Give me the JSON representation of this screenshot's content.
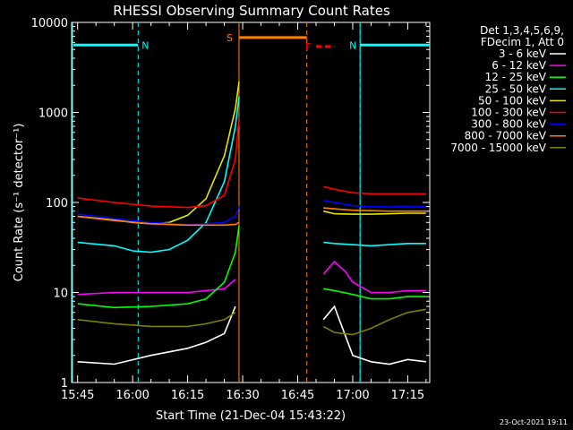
{
  "chart_data": {
    "type": "line",
    "title": "RHESSI Observing Summary Count Rates",
    "xlabel": "Start Time (21-Dec-04 15:43:22)",
    "ylabel": "Count Rate (s⁻¹ detector⁻¹)",
    "yscale": "log",
    "xlim": [
      "15:43:22",
      "17:21:00"
    ],
    "ylim": [
      1,
      10000
    ],
    "x_ticks": [
      "15:45",
      "16:00",
      "16:15",
      "16:30",
      "16:45",
      "17:00",
      "17:15"
    ],
    "y_ticks": [
      "1",
      "10",
      "100",
      "1000",
      "10000"
    ],
    "legend_header": [
      "Det 1,3,4,5,6,9,",
      "FDecim 1, Att 0"
    ],
    "legend_position": "right",
    "timestamp": "23-Oct-2021 19:11",
    "annotations": [
      {
        "label": "N",
        "color": "#00ffff",
        "start": "15:43:22",
        "end": "16:01:30",
        "level": 5600
      },
      {
        "label": "N",
        "color": "#00ffff",
        "start": "17:02:00",
        "end": "17:21:00",
        "level": 5600
      },
      {
        "label": "S",
        "color": "#ff8000",
        "start": "16:29:00",
        "end": "16:47:30",
        "level": 6800
      },
      {
        "label": "F",
        "color": "#ff0000",
        "start": "16:50:00",
        "end": "16:55:00",
        "level": 5400
      }
    ],
    "data_gap": [
      "16:29:00",
      "16:51:00"
    ],
    "series": [
      {
        "name": "3 - 6 keV",
        "color": "#ffffff",
        "x": [
          "15:45",
          "15:55",
          "16:05",
          "16:15",
          "16:20",
          "16:25",
          "16:28",
          "16:52",
          "16:55",
          "17:00",
          "17:05",
          "17:10",
          "17:15",
          "17:20"
        ],
        "y": [
          1.7,
          1.6,
          2,
          2.4,
          2.8,
          3.5,
          7,
          5,
          7,
          2,
          1.7,
          1.6,
          1.8,
          1.7
        ]
      },
      {
        "name": "6 - 12 keV",
        "color": "#ff00ff",
        "x": [
          "15:45",
          "15:55",
          "16:05",
          "16:15",
          "16:20",
          "16:25",
          "16:28",
          "16:52",
          "16:55",
          "16:58",
          "17:00",
          "17:05",
          "17:10",
          "17:15",
          "17:20"
        ],
        "y": [
          9.5,
          10,
          10,
          10,
          10.5,
          11,
          14,
          16,
          22,
          17,
          13,
          10,
          10,
          10.5,
          10.5
        ]
      },
      {
        "name": "12 - 25 keV",
        "color": "#00ff00",
        "x": [
          "15:45",
          "15:55",
          "16:05",
          "16:15",
          "16:20",
          "16:25",
          "16:28",
          "16:29",
          "16:52",
          "16:55",
          "17:00",
          "17:05",
          "17:10",
          "17:15",
          "17:20"
        ],
        "y": [
          7.5,
          6.8,
          7,
          7.5,
          8.5,
          13,
          28,
          55,
          11,
          10.5,
          9.5,
          8.5,
          8.5,
          9,
          9
        ]
      },
      {
        "name": "25 - 50 keV",
        "color": "#00ffff",
        "x": [
          "15:45",
          "15:55",
          "16:00",
          "16:05",
          "16:10",
          "16:15",
          "16:20",
          "16:25",
          "16:28",
          "16:29",
          "16:52",
          "16:55",
          "17:00",
          "17:05",
          "17:10",
          "17:15",
          "17:20"
        ],
        "y": [
          36,
          33,
          29,
          28,
          30,
          38,
          60,
          170,
          700,
          1500,
          36,
          35,
          34,
          33,
          34,
          35,
          35
        ]
      },
      {
        "name": "50 - 100 keV",
        "color": "#e6e600",
        "x": [
          "15:45",
          "15:55",
          "16:00",
          "16:05",
          "16:10",
          "16:15",
          "16:20",
          "16:25",
          "16:28",
          "16:29",
          "16:52",
          "16:55",
          "17:00",
          "17:05",
          "17:10",
          "17:15",
          "17:20"
        ],
        "y": [
          70,
          64,
          60,
          58,
          60,
          72,
          110,
          330,
          1100,
          2200,
          80,
          75,
          74,
          74,
          75,
          76,
          76
        ]
      },
      {
        "name": "100 - 300 keV",
        "color": "#ff0000",
        "x": [
          "15:45",
          "15:55",
          "16:05",
          "16:15",
          "16:20",
          "16:25",
          "16:28",
          "16:29",
          "16:52",
          "16:55",
          "17:00",
          "17:05",
          "17:10",
          "17:15",
          "17:20"
        ],
        "y": [
          112,
          100,
          91,
          88,
          92,
          120,
          300,
          850,
          150,
          140,
          128,
          125,
          125,
          125,
          125
        ]
      },
      {
        "name": "300 - 800 keV",
        "color": "#0000ff",
        "x": [
          "15:45",
          "15:55",
          "16:05",
          "16:15",
          "16:20",
          "16:25",
          "16:28",
          "16:29",
          "16:52",
          "16:55",
          "17:00",
          "17:05",
          "17:10",
          "17:15",
          "17:20"
        ],
        "y": [
          74,
          66,
          60,
          57,
          58,
          60,
          70,
          90,
          105,
          100,
          92,
          90,
          89,
          90,
          90
        ]
      },
      {
        "name": "800 - 7000 keV",
        "color": "#ff8000",
        "x": [
          "15:45",
          "15:55",
          "16:05",
          "16:15",
          "16:20",
          "16:25",
          "16:28",
          "16:29",
          "16:52",
          "16:55",
          "17:00",
          "17:05",
          "17:10",
          "17:15",
          "17:20"
        ],
        "y": [
          70,
          63,
          58,
          56,
          56,
          56,
          57,
          60,
          87,
          85,
          82,
          81,
          80,
          80,
          80
        ]
      },
      {
        "name": "7000 - 15000 keV",
        "color": "#808000",
        "x": [
          "15:45",
          "15:55",
          "16:05",
          "16:15",
          "16:20",
          "16:25",
          "16:28",
          "16:52",
          "16:55",
          "17:00",
          "17:05",
          "17:10",
          "17:15",
          "17:20"
        ],
        "y": [
          5,
          4.5,
          4.2,
          4.2,
          4.5,
          5,
          6,
          4.2,
          3.6,
          3.4,
          4,
          5,
          6,
          6.5
        ]
      }
    ]
  }
}
